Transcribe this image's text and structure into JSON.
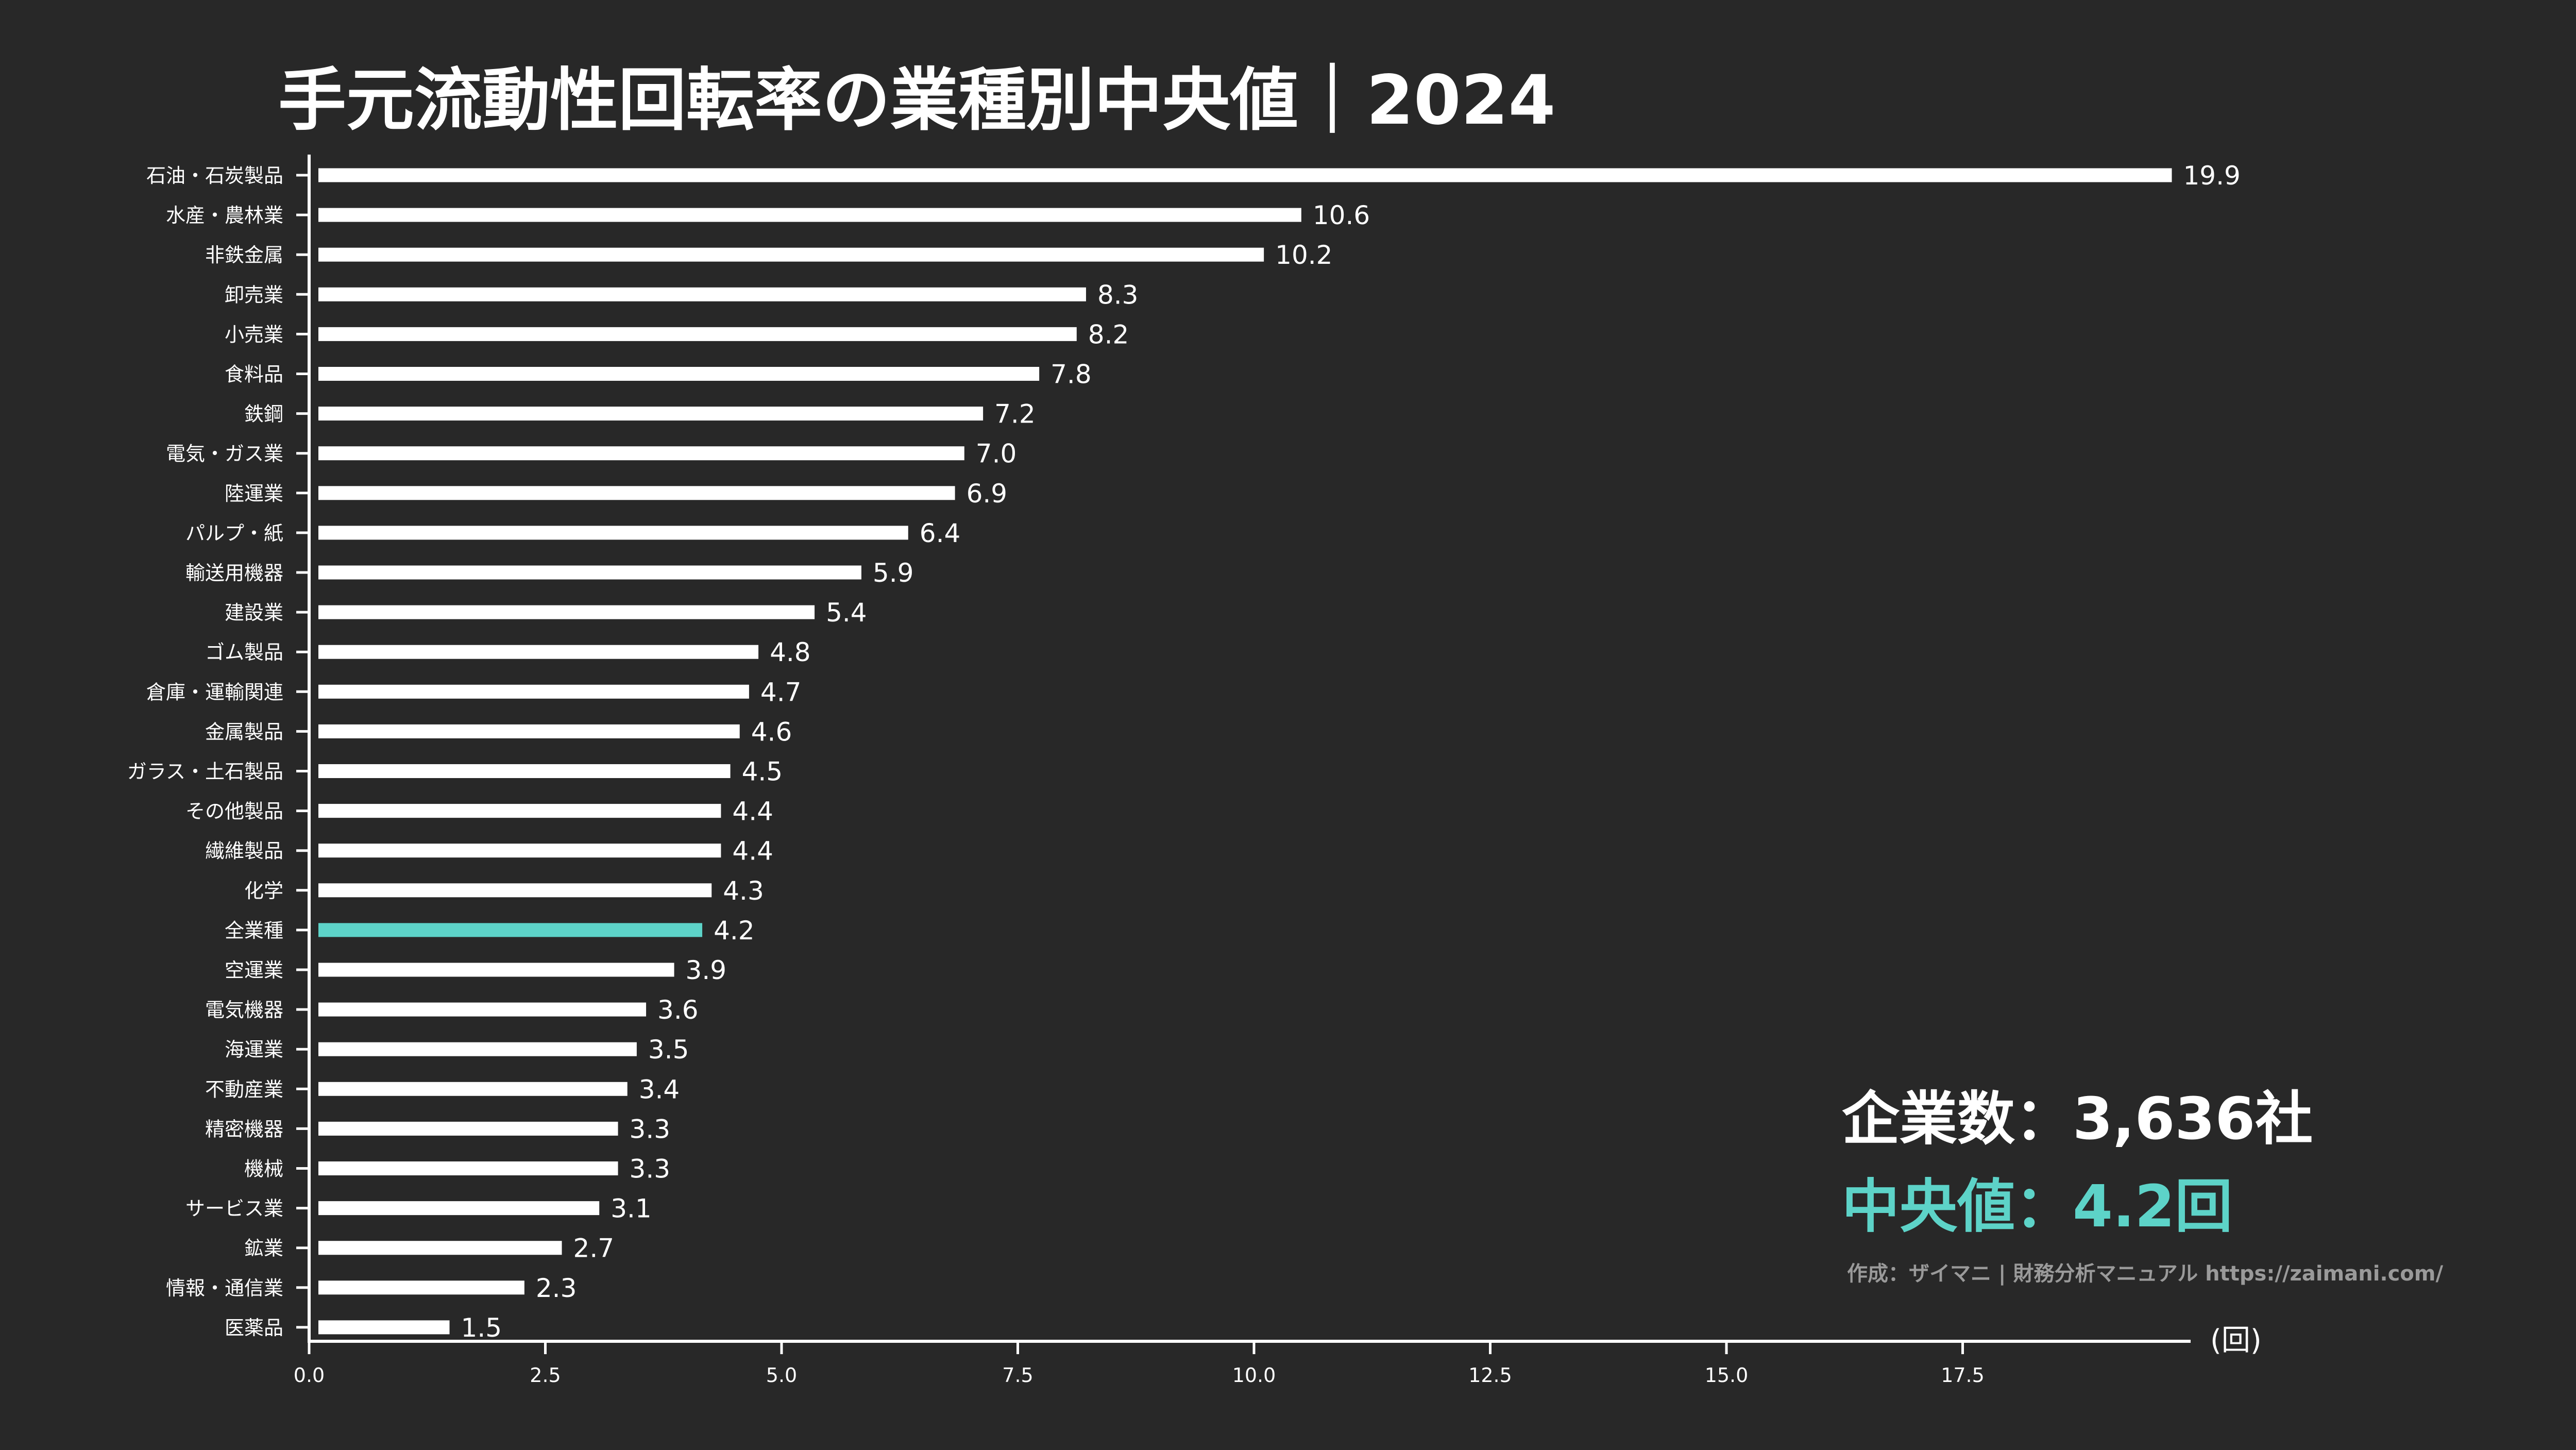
{
  "chart_data": {
    "type": "bar",
    "orientation": "horizontal",
    "title": "手元流動性回転率の業種別中央値｜2024",
    "xlabel": "",
    "unit_label": "(回)",
    "xlim": [
      0,
      19.9
    ],
    "xticks": [
      "0.0",
      "2.5",
      "5.0",
      "7.5",
      "10.0",
      "12.5",
      "15.0",
      "17.5"
    ],
    "xtick_values": [
      0,
      2.5,
      5,
      7.5,
      10,
      12.5,
      15,
      17.5
    ],
    "grid": false,
    "categories": [
      "石油・石炭製品",
      "水産・農林業",
      "非鉄金属",
      "卸売業",
      "小売業",
      "食料品",
      "鉄鋼",
      "電気・ガス業",
      "陸運業",
      "パルプ・紙",
      "輸送用機器",
      "建設業",
      "ゴム製品",
      "倉庫・運輸関連",
      "金属製品",
      "ガラス・土石製品",
      "その他製品",
      "繊維製品",
      "化学",
      "全業種",
      "空運業",
      "電気機器",
      "海運業",
      "不動産業",
      "精密機器",
      "機械",
      "サービス業",
      "鉱業",
      "情報・通信業",
      "医薬品"
    ],
    "values": [
      19.9,
      10.6,
      10.2,
      8.3,
      8.2,
      7.8,
      7.2,
      7.0,
      6.9,
      6.4,
      5.9,
      5.4,
      4.8,
      4.7,
      4.6,
      4.5,
      4.4,
      4.4,
      4.3,
      4.2,
      3.9,
      3.6,
      3.5,
      3.4,
      3.3,
      3.3,
      3.1,
      2.7,
      2.3,
      1.5
    ],
    "value_labels": [
      "19.9",
      "10.6",
      "10.2",
      "8.3",
      "8.2",
      "7.8",
      "7.2",
      "7.0",
      "6.9",
      "6.4",
      "5.9",
      "5.4",
      "4.8",
      "4.7",
      "4.6",
      "4.5",
      "4.4",
      "4.4",
      "4.3",
      "4.2",
      "3.9",
      "3.6",
      "3.5",
      "3.4",
      "3.3",
      "3.3",
      "3.1",
      "2.7",
      "2.3",
      "1.5"
    ],
    "highlight_category": "全業種",
    "colors": {
      "bar": "#ffffff",
      "highlight": "#5dd3c8",
      "background": "#282828",
      "credit": "#9a9a9a"
    }
  },
  "annotations": {
    "company_count": "企業数：3,636社",
    "median": "中央値：4.2回",
    "credit": "作成：ザイマニ | 財務分析マニュアル https://zaimani.com/"
  }
}
